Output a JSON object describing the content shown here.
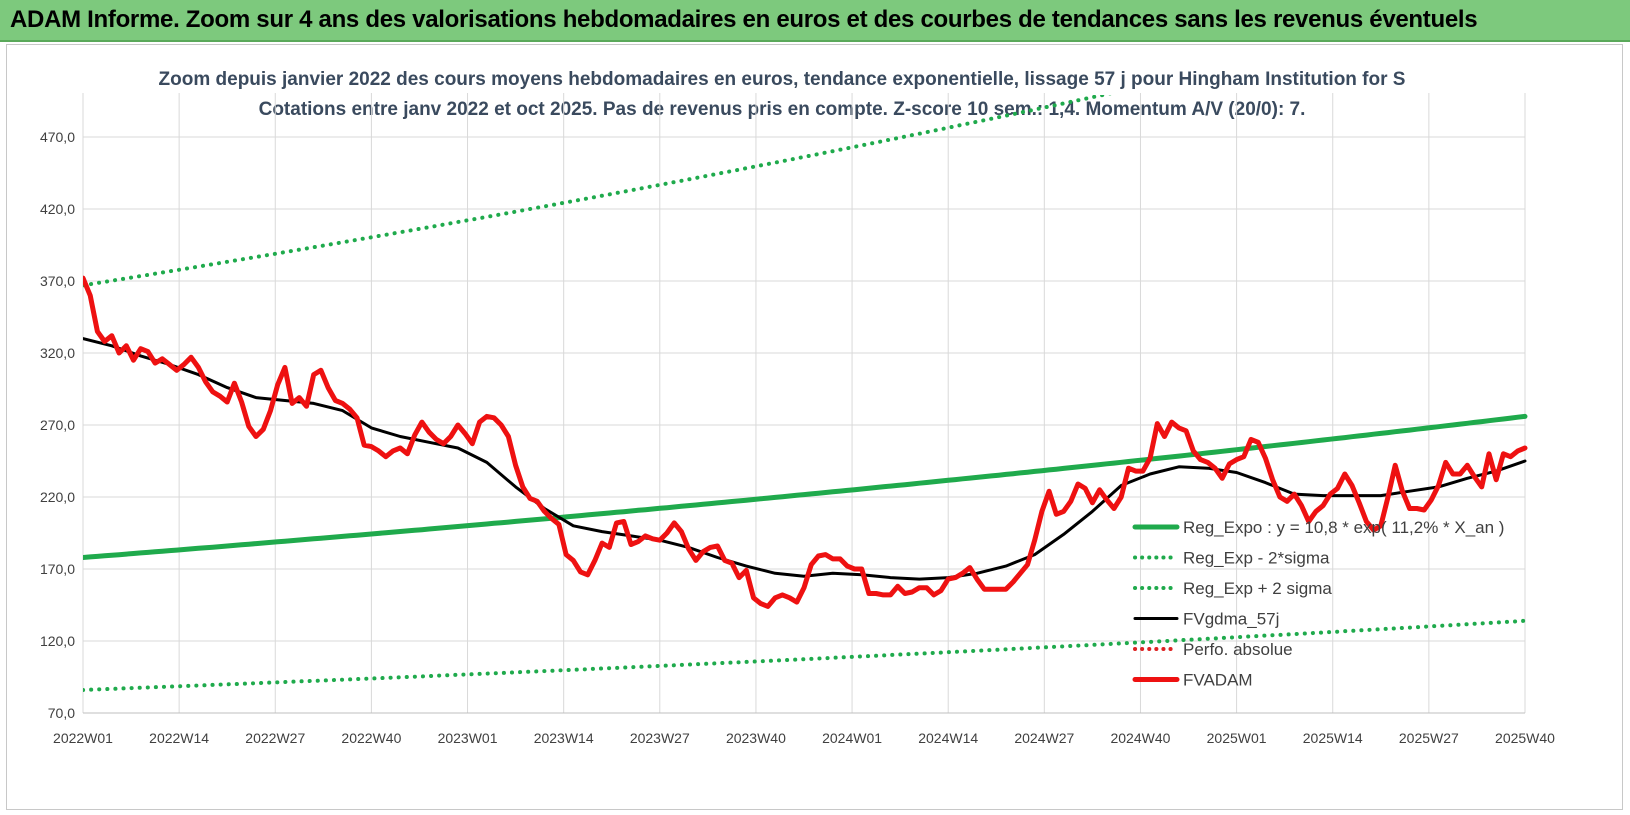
{
  "banner": {
    "title": "ADAM Informe. Zoom sur 4 ans des valorisations hebdomadaires en euros et des courbes de tendances sans les revenus éventuels"
  },
  "colors": {
    "banner_bg": "#7dc97d",
    "trend_green": "#1faa4c",
    "smooth_black": "#000000",
    "price_red": "#ee1111",
    "perfo_red": "#dd2222",
    "grid": "#d9d9d9"
  },
  "chart_data": {
    "type": "line",
    "title_line1": "Zoom depuis janvier 2022 des cours moyens hebdomadaires en euros, tendance exponentielle, lissage 57 j pour Hingham Institution for S",
    "title_line2": "Cotations entre janv 2022 et oct 2025. Pas de revenus pris en compte. Z-score 10 sem.: 1,4. Momentum A/V (20/0): 7.",
    "ylim": [
      70,
      470
    ],
    "y_ticks": [
      "70,0",
      "120,0",
      "170,0",
      "220,0",
      "270,0",
      "320,0",
      "370,0",
      "420,0",
      "470,0"
    ],
    "y_tick_values": [
      70,
      120,
      170,
      220,
      270,
      320,
      370,
      420,
      470
    ],
    "x_ticks": [
      "2022W01",
      "2022W14",
      "2022W27",
      "2022W40",
      "2023W01",
      "2023W14",
      "2023W27",
      "2023W40",
      "2024W01",
      "2024W14",
      "2024W27",
      "2024W40",
      "2025W01",
      "2025W14",
      "2025W27",
      "2025W40"
    ],
    "x_range": [
      0,
      200
    ],
    "legend": [
      {
        "label": "Reg_Expo : y = 10,8 * exp( 11,2% *  X_an )",
        "style": "solid",
        "color": "#1faa4c"
      },
      {
        "label": "Reg_Exp - 2*sigma",
        "style": "dotted",
        "color": "#1faa4c"
      },
      {
        "label": "Reg_Exp + 2 sigma",
        "style": "dotted",
        "color": "#1faa4c"
      },
      {
        "label": "FVgdma_57j",
        "style": "solid",
        "color": "#000000"
      },
      {
        "label": "Perfo. absolue",
        "style": "dotted",
        "color": "#dd2222"
      },
      {
        "label": "FVADAM",
        "style": "solid",
        "color": "#ee1111"
      }
    ],
    "series": [
      {
        "name": "Reg_Expo : y = 10,8 * exp( 11,2% *  X_an )",
        "kind": "exp",
        "x": [
          0,
          200
        ],
        "y": [
          178,
          276
        ]
      },
      {
        "name": "Reg_Exp - 2*sigma",
        "kind": "exp",
        "x": [
          0,
          200
        ],
        "y": [
          86,
          134
        ]
      },
      {
        "name": "Reg_Exp + 2 sigma",
        "kind": "exp",
        "x": [
          0,
          200
        ],
        "y": [
          367,
          567
        ]
      },
      {
        "name": "FVgdma_57j",
        "kind": "line",
        "x": [
          0,
          4,
          8,
          12,
          16,
          20,
          24,
          28,
          32,
          36,
          40,
          44,
          48,
          52,
          56,
          60,
          64,
          68,
          72,
          76,
          80,
          84,
          88,
          92,
          96,
          100,
          104,
          108,
          112,
          116,
          120,
          124,
          128,
          132,
          136,
          140,
          144,
          148,
          152,
          156,
          160,
          164,
          168,
          172,
          176,
          180,
          184,
          188,
          192,
          196,
          200
        ],
        "y": [
          330,
          325,
          318,
          312,
          305,
          296,
          289,
          287,
          285,
          280,
          268,
          262,
          258,
          254,
          244,
          227,
          212,
          200,
          196,
          193,
          190,
          185,
          178,
          172,
          167,
          165,
          167,
          166,
          164,
          163,
          164,
          167,
          172,
          180,
          194,
          210,
          228,
          236,
          241,
          240,
          237,
          230,
          222,
          221,
          221,
          221,
          224,
          227,
          233,
          238,
          245
        ]
      },
      {
        "name": "FVADAM",
        "kind": "line",
        "x": [
          0,
          1,
          2,
          3,
          4,
          5,
          6,
          7,
          8,
          9,
          10,
          11,
          12,
          13,
          14,
          15,
          16,
          17,
          18,
          19,
          20,
          21,
          22,
          23,
          24,
          25,
          26,
          27,
          28,
          29,
          30,
          31,
          32,
          33,
          34,
          35,
          36,
          37,
          38,
          39,
          40,
          41,
          42,
          43,
          44,
          45,
          46,
          47,
          48,
          49,
          50,
          51,
          52,
          53,
          54,
          55,
          56,
          57,
          58,
          59,
          60,
          61,
          62,
          63,
          64,
          65,
          66,
          67,
          68,
          69,
          70,
          71,
          72,
          73,
          74,
          75,
          76,
          77,
          78,
          79,
          80,
          81,
          82,
          83,
          84,
          85,
          86,
          87,
          88,
          89,
          90,
          91,
          92,
          93,
          94,
          95,
          96,
          97,
          98,
          99,
          100,
          101,
          102,
          103,
          104,
          105,
          106,
          107,
          108,
          109,
          110,
          111,
          112,
          113,
          114,
          115,
          116,
          117,
          118,
          119,
          120,
          121,
          122,
          123,
          124,
          125,
          126,
          127,
          128,
          129,
          130,
          131,
          132,
          133,
          134,
          135,
          136,
          137,
          138,
          139,
          140,
          141,
          142,
          143,
          144,
          145,
          146,
          147,
          148,
          149,
          150,
          151,
          152,
          153,
          154,
          155,
          156,
          157,
          158,
          159,
          160,
          161,
          162,
          163,
          164,
          165,
          166,
          167,
          168,
          169,
          170,
          171,
          172,
          173,
          174,
          175,
          176,
          177,
          178,
          179,
          180,
          181,
          182,
          183,
          184,
          185,
          186,
          187,
          188,
          189,
          190,
          191,
          192,
          193,
          194,
          195,
          196,
          197,
          198,
          199,
          200
        ],
        "y": [
          372,
          360,
          335,
          328,
          332,
          320,
          325,
          315,
          323,
          321,
          313,
          316,
          312,
          308,
          312,
          317,
          310,
          300,
          293,
          290,
          286,
          299,
          286,
          269,
          262,
          267,
          280,
          298,
          310,
          285,
          289,
          283,
          305,
          308,
          296,
          287,
          285,
          281,
          275,
          256,
          255,
          252,
          248,
          252,
          254,
          250,
          263,
          272,
          265,
          260,
          257,
          262,
          270,
          264,
          257,
          272,
          276,
          275,
          270,
          262,
          242,
          227,
          219,
          217,
          210,
          205,
          201,
          180,
          176,
          168,
          166,
          176,
          188,
          185,
          202,
          203,
          187,
          189,
          193,
          191,
          190,
          195,
          202,
          196,
          184,
          176,
          182,
          185,
          186,
          176,
          174,
          164,
          169,
          150,
          146,
          144,
          150,
          152,
          150,
          147,
          157,
          173,
          179,
          180,
          177,
          177,
          172,
          170,
          170,
          153,
          153,
          152,
          152,
          158,
          153,
          154,
          157,
          157,
          152,
          155,
          163,
          164,
          167,
          171,
          163,
          156,
          156,
          156,
          156,
          161,
          167,
          173,
          190,
          210,
          224,
          208,
          210,
          217,
          229,
          226,
          216,
          225,
          218,
          212,
          220,
          240,
          238,
          238,
          247,
          271,
          262,
          272,
          268,
          266,
          252,
          246,
          244,
          240,
          233,
          243,
          246,
          248,
          260,
          258,
          247,
          232,
          220,
          217,
          222,
          214,
          203,
          210,
          214,
          222,
          226,
          236,
          228,
          216,
          203,
          197,
          200,
          220,
          242,
          224,
          212,
          212,
          211,
          218,
          228,
          244,
          236,
          236,
          242,
          234,
          227,
          250,
          232,
          250,
          248,
          252,
          254
        ]
      }
    ]
  }
}
